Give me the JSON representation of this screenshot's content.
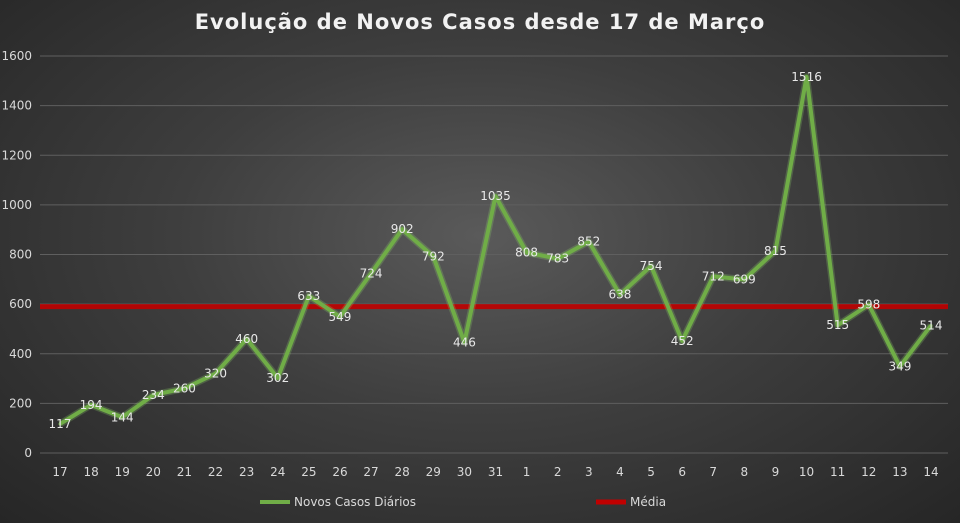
{
  "chart_data": {
    "type": "line",
    "title": "Evolução de Novos Casos desde 17 de Março",
    "xlabel": "",
    "ylabel": "",
    "categories": [
      "17",
      "18",
      "19",
      "20",
      "21",
      "22",
      "23",
      "24",
      "25",
      "26",
      "27",
      "28",
      "29",
      "30",
      "31",
      "1",
      "2",
      "3",
      "4",
      "5",
      "6",
      "7",
      "8",
      "9",
      "10",
      "11",
      "12",
      "13",
      "14"
    ],
    "series": [
      {
        "name": "Novos Casos Diários",
        "color": "#70ad47",
        "values": [
          117,
          194,
          144,
          234,
          260,
          320,
          460,
          302,
          633,
          549,
          724,
          902,
          792,
          446,
          1035,
          808,
          783,
          852,
          638,
          754,
          452,
          712,
          699,
          815,
          1516,
          515,
          598,
          349,
          514
        ]
      },
      {
        "name": "Média",
        "color": "#c00000",
        "value": 590
      }
    ],
    "ylim": [
      0,
      1600
    ],
    "yticks": [
      0,
      200,
      400,
      600,
      800,
      1000,
      1200,
      1400,
      1600
    ],
    "grid": true,
    "data_labels": true,
    "legend": "bottom"
  }
}
